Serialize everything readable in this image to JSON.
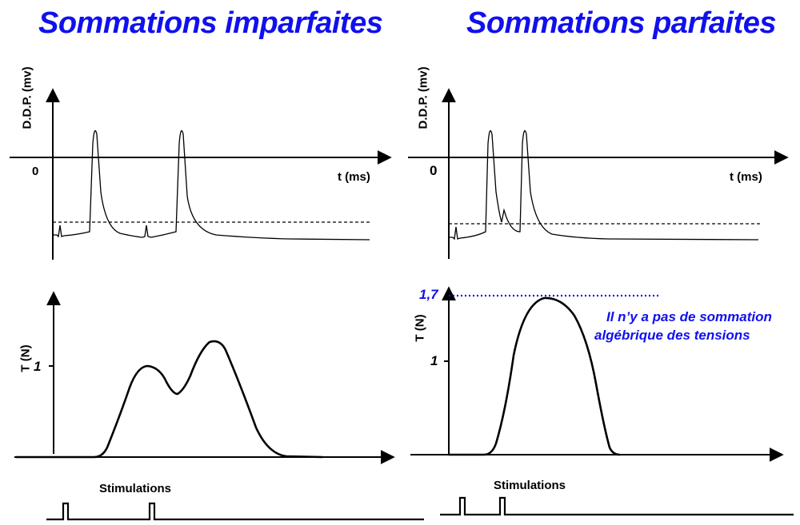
{
  "left": {
    "title": "Sommations imparfaites",
    "ddp_label": "D.D.P. (mv)",
    "zero_label": "0",
    "time_label": "t (ms)",
    "tension_label": "T (N)",
    "tick_1": "1",
    "stim_label": "Stimulations"
  },
  "right": {
    "title": "Sommations parfaites",
    "ddp_label": "D.D.P. (mv)",
    "zero_label": "0",
    "time_label": "t (ms)",
    "tension_label": "T (N)",
    "tick_1": "1",
    "tick_17": "1,7",
    "note_line1": "Il n’y a pas de sommation",
    "note_line2": "algébrique des tensions",
    "stim_label": "Stimulations"
  },
  "colors": {
    "accent": "#1010ee",
    "ink": "#000000"
  }
}
